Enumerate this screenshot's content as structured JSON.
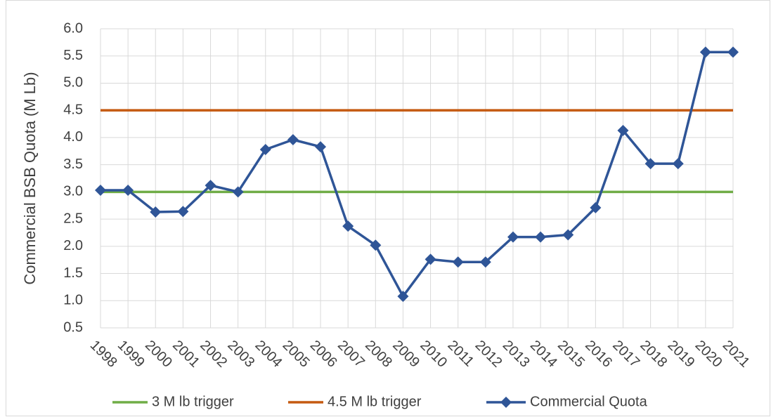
{
  "chart_data": {
    "type": "line",
    "y_label": "Commercial BSB Quota (M Lb)",
    "categories": [
      "1998",
      "1999",
      "2000",
      "2001",
      "2002",
      "2003",
      "2004",
      "2005",
      "2006",
      "2007",
      "2008",
      "2009",
      "2010",
      "2011",
      "2012",
      "2013",
      "2014",
      "2015",
      "2016",
      "2017",
      "2018",
      "2019",
      "2020",
      "2021"
    ],
    "series": [
      {
        "name": "3 M lb trigger",
        "color": "#70ad47",
        "values": [
          3,
          3,
          3,
          3,
          3,
          3,
          3,
          3,
          3,
          3,
          3,
          3,
          3,
          3,
          3,
          3,
          3,
          3,
          3,
          3,
          3,
          3,
          3,
          3
        ]
      },
      {
        "name": "4.5 M lb trigger",
        "color": "#c55a11",
        "values": [
          4.5,
          4.5,
          4.5,
          4.5,
          4.5,
          4.5,
          4.5,
          4.5,
          4.5,
          4.5,
          4.5,
          4.5,
          4.5,
          4.5,
          4.5,
          4.5,
          4.5,
          4.5,
          4.5,
          4.5,
          4.5,
          4.5,
          4.5,
          4.5
        ]
      },
      {
        "name": "Commercial Quota",
        "color": "#2f5597",
        "marker": "diamond",
        "values": [
          3.03,
          3.03,
          2.63,
          2.64,
          3.12,
          3.0,
          3.78,
          3.96,
          3.83,
          2.37,
          2.02,
          1.08,
          1.76,
          1.71,
          1.71,
          2.17,
          2.17,
          2.21,
          2.71,
          4.13,
          3.52,
          3.52,
          5.57,
          5.57
        ]
      }
    ],
    "ylim": [
      0.5,
      6.0
    ],
    "yticks": [
      {
        "value": 6,
        "label": "6.0"
      },
      5.5,
      {
        "value": 5,
        "label": "5.0"
      },
      4.5,
      {
        "value": 4,
        "label": "4.0"
      },
      3.5,
      {
        "value": 3,
        "label": "3.0"
      },
      2.5,
      {
        "value": 2,
        "label": "2.0"
      },
      1.5,
      {
        "value": 1,
        "label": "1.0"
      },
      0.5
    ],
    "grid": true,
    "legend": "bottom"
  }
}
